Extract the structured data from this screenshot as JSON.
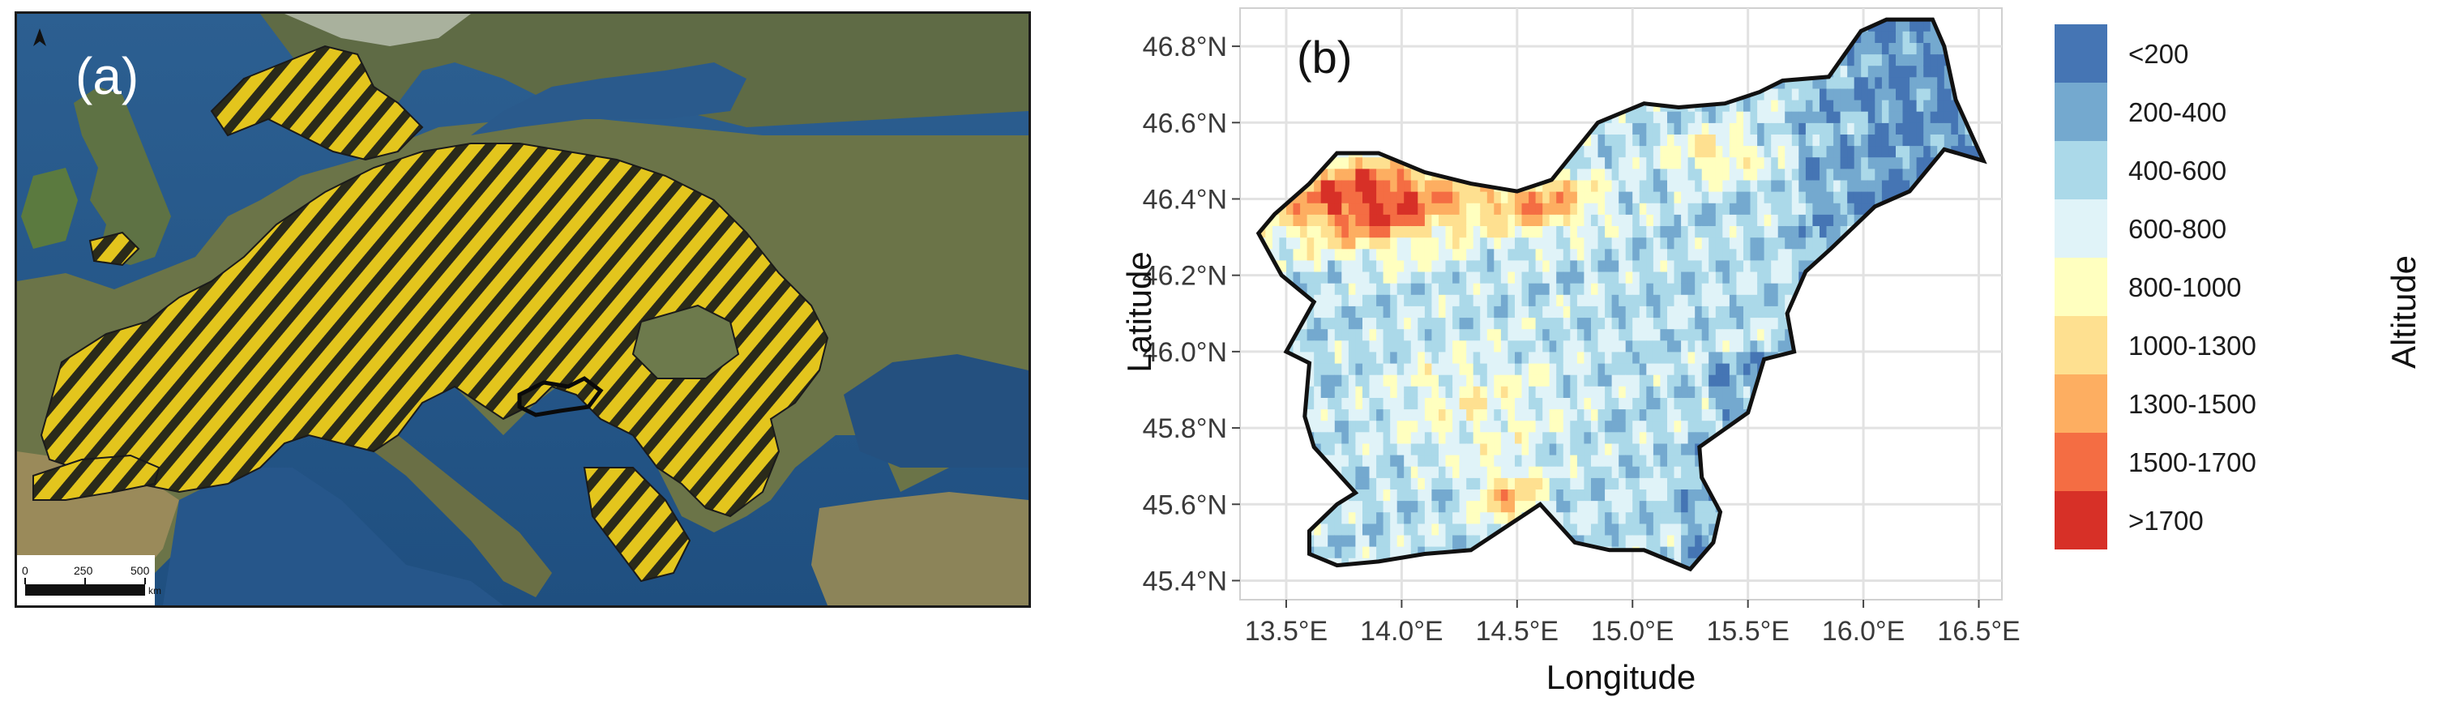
{
  "panel_a": {
    "label": "(a)",
    "scale_bar": {
      "ticks": [
        "0",
        "250",
        "500"
      ],
      "unit": "km"
    },
    "icons": {
      "north_arrow": "north-arrow-icon"
    },
    "colors": {
      "hatch_yellow": "#e3c51d",
      "hatch_dark": "#2a2a1a",
      "sea": "#2b5d8f"
    }
  },
  "panel_b": {
    "label": "(b)",
    "x_axis": {
      "title": "Longitude",
      "ticks": [
        "13.5°E",
        "14.0°E",
        "14.5°E",
        "15.0°E",
        "15.5°E",
        "16.0°E",
        "16.5°E"
      ]
    },
    "y_axis": {
      "title": "Latitude",
      "ticks": [
        "46.8°N",
        "46.6°N",
        "46.4°N",
        "46.2°N",
        "46.0°N",
        "45.8°N",
        "45.6°N",
        "45.4°N"
      ]
    },
    "legend": {
      "title": "Altitude",
      "items": [
        {
          "label": "<200",
          "color": "#4575b4"
        },
        {
          "label": "200-400",
          "color": "#74a9cf"
        },
        {
          "label": "400-600",
          "color": "#abd9e9"
        },
        {
          "label": "600-800",
          "color": "#e0f3f8"
        },
        {
          "label": "800-1000",
          "color": "#ffffbf"
        },
        {
          "label": "1000-1300",
          "color": "#fee090"
        },
        {
          "label": "1300-1500",
          "color": "#fdae61"
        },
        {
          "label": "1500-1700",
          "color": "#f46d43"
        },
        {
          "label": ">1700",
          "color": "#d73027"
        }
      ]
    }
  }
}
